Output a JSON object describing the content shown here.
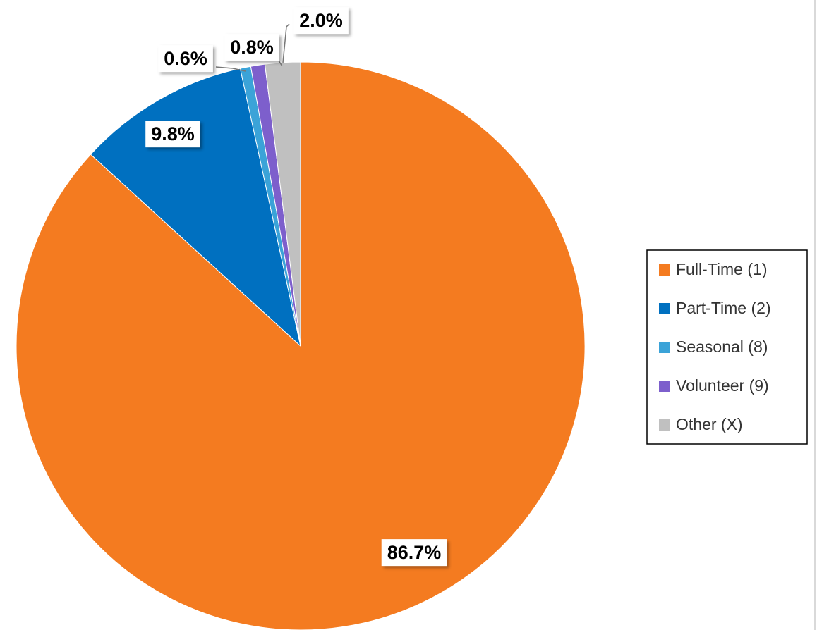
{
  "chart_data": {
    "type": "pie",
    "categories": [
      "Full-Time (1)",
      "Part-Time (2)",
      "Seasonal (8)",
      "Volunteer (9)",
      "Other (X)"
    ],
    "values": [
      86.7,
      9.8,
      0.6,
      0.8,
      2.0
    ],
    "value_labels": [
      "86.7%",
      "9.8%",
      "0.6%",
      "0.8%",
      "2.0%"
    ],
    "colors": [
      "#f47b20",
      "#0070c0",
      "#3ba3d8",
      "#7d5fcc",
      "#c0c0c0"
    ],
    "legend": "right"
  }
}
